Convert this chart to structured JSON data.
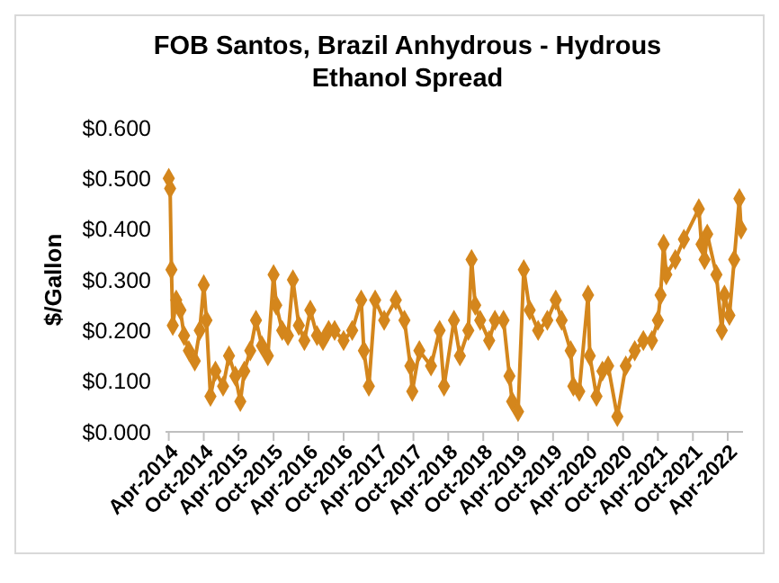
{
  "chart_data": {
    "type": "line",
    "title": "FOB Santos, Brazil Anhydrous - Hydrous Ethanol Spread",
    "ylabel": "$/Gallon",
    "marker": "diamond",
    "line_style": "solid",
    "grid": false,
    "xlim": [
      "2014-03-15",
      "2022-06-20"
    ],
    "xticks": [
      {
        "value": "2014-04-01",
        "label": "Apr-2014"
      },
      {
        "value": "2014-10-01",
        "label": "Oct-2014"
      },
      {
        "value": "2015-04-01",
        "label": "Apr-2015"
      },
      {
        "value": "2015-10-01",
        "label": "Oct-2015"
      },
      {
        "value": "2016-04-01",
        "label": "Apr-2016"
      },
      {
        "value": "2016-10-01",
        "label": "Oct-2016"
      },
      {
        "value": "2017-04-01",
        "label": "Apr-2017"
      },
      {
        "value": "2017-10-01",
        "label": "Oct-2017"
      },
      {
        "value": "2018-04-01",
        "label": "Apr-2018"
      },
      {
        "value": "2018-10-01",
        "label": "Oct-2018"
      },
      {
        "value": "2019-04-01",
        "label": "Apr-2019"
      },
      {
        "value": "2019-10-01",
        "label": "Oct-2019"
      },
      {
        "value": "2020-04-01",
        "label": "Apr-2020"
      },
      {
        "value": "2020-10-01",
        "label": "Oct-2020"
      },
      {
        "value": "2021-04-01",
        "label": "Apr-2021"
      },
      {
        "value": "2021-10-01",
        "label": "Oct-2021"
      },
      {
        "value": "2022-04-01",
        "label": "Apr-2022"
      }
    ],
    "ylim": [
      0,
      0.6
    ],
    "yticks": [
      {
        "value": 0,
        "label": "$0.000"
      },
      {
        "value": 0.1,
        "label": "$0.100"
      },
      {
        "value": 0.2,
        "label": "$0.200"
      },
      {
        "value": 0.3,
        "label": "$0.300"
      },
      {
        "value": 0.4,
        "label": "$0.400"
      },
      {
        "value": 0.5,
        "label": "$0.500"
      },
      {
        "value": 0.6,
        "label": "$0.600"
      }
    ],
    "x": [
      "2014-04-01",
      "2014-04-08",
      "2014-04-15",
      "2014-04-22",
      "2014-05-10",
      "2014-06-01",
      "2014-06-20",
      "2014-07-15",
      "2014-08-15",
      "2014-09-10",
      "2014-10-01",
      "2014-10-15",
      "2014-11-05",
      "2014-12-01",
      "2015-01-10",
      "2015-02-10",
      "2015-03-15",
      "2015-04-10",
      "2015-05-01",
      "2015-06-01",
      "2015-07-01",
      "2015-08-01",
      "2015-09-01",
      "2015-10-01",
      "2015-10-15",
      "2015-11-15",
      "2015-12-15",
      "2016-01-10",
      "2016-02-10",
      "2016-03-10",
      "2016-04-10",
      "2016-05-15",
      "2016-06-15",
      "2016-07-15",
      "2016-08-15",
      "2016-10-01",
      "2016-11-15",
      "2017-01-01",
      "2017-01-15",
      "2017-02-10",
      "2017-03-15",
      "2017-05-01",
      "2017-07-01",
      "2017-08-15",
      "2017-09-15",
      "2017-09-25",
      "2017-11-01",
      "2018-01-01",
      "2018-02-15",
      "2018-03-10",
      "2018-05-01",
      "2018-06-01",
      "2018-07-15",
      "2018-08-01",
      "2018-08-20",
      "2018-09-15",
      "2018-11-01",
      "2018-12-01",
      "2019-01-15",
      "2019-02-15",
      "2019-03-01",
      "2019-04-01",
      "2019-05-01",
      "2019-06-01",
      "2019-07-15",
      "2019-09-01",
      "2019-10-15",
      "2019-11-15",
      "2020-01-01",
      "2020-01-15",
      "2020-02-15",
      "2020-04-01",
      "2020-04-10",
      "2020-05-15",
      "2020-06-15",
      "2020-07-15",
      "2020-09-01",
      "2020-10-15",
      "2020-12-01",
      "2021-01-15",
      "2021-03-01",
      "2021-04-01",
      "2021-04-15",
      "2021-05-01",
      "2021-05-15",
      "2021-07-01",
      "2021-08-15",
      "2021-11-01",
      "2021-11-15",
      "2021-12-01",
      "2021-12-15",
      "2022-02-01",
      "2022-03-01",
      "2022-03-15",
      "2022-04-10",
      "2022-05-05",
      "2022-06-01",
      "2022-06-10"
    ],
    "series": [
      {
        "color": "#d4861c",
        "values": [
          0.5,
          0.48,
          0.32,
          0.21,
          0.26,
          0.24,
          0.19,
          0.16,
          0.14,
          0.2,
          0.29,
          0.22,
          0.07,
          0.12,
          0.09,
          0.15,
          0.11,
          0.06,
          0.12,
          0.16,
          0.22,
          0.17,
          0.15,
          0.31,
          0.25,
          0.2,
          0.19,
          0.3,
          0.21,
          0.18,
          0.24,
          0.19,
          0.18,
          0.2,
          0.2,
          0.18,
          0.2,
          0.26,
          0.16,
          0.09,
          0.26,
          0.22,
          0.26,
          0.22,
          0.13,
          0.08,
          0.16,
          0.13,
          0.2,
          0.09,
          0.22,
          0.15,
          0.2,
          0.34,
          0.25,
          0.22,
          0.18,
          0.22,
          0.22,
          0.11,
          0.06,
          0.04,
          0.32,
          0.24,
          0.2,
          0.22,
          0.26,
          0.22,
          0.16,
          0.09,
          0.08,
          0.27,
          0.15,
          0.07,
          0.12,
          0.13,
          0.03,
          0.13,
          0.16,
          0.18,
          0.18,
          0.22,
          0.27,
          0.37,
          0.31,
          0.34,
          0.38,
          0.44,
          0.37,
          0.34,
          0.39,
          0.31,
          0.2,
          0.27,
          0.23,
          0.34,
          0.46,
          0.4
        ]
      }
    ]
  }
}
